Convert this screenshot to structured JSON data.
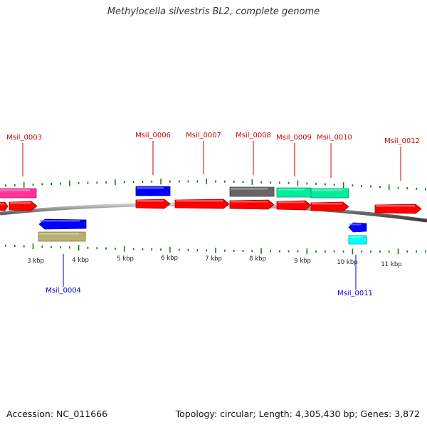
{
  "title": "Methylocella silvestris BL2, complete genome",
  "footer": {
    "accession": "Accession: NC_011666",
    "stats": "Topology: circular; Length: 4,305,430 bp; Genes: 3,872"
  },
  "colors": {
    "backbone": "#7a7a7a",
    "tick": "#1f7a1f",
    "label_forward": "#cc0000",
    "label_reverse": "#0000cc"
  },
  "gene_labels": [
    {
      "id": "Msil_0003",
      "strand": "+"
    },
    {
      "id": "Msil_0004",
      "strand": "-"
    },
    {
      "id": "Msil_0006",
      "strand": "+"
    },
    {
      "id": "Msil_0007",
      "strand": "+"
    },
    {
      "id": "Msil_0008",
      "strand": "+"
    },
    {
      "id": "Msil_0009",
      "strand": "+"
    },
    {
      "id": "Msil_0010",
      "strand": "+"
    },
    {
      "id": "Msil_0011",
      "strand": "-"
    },
    {
      "id": "Msil_0012",
      "strand": "+"
    }
  ],
  "scale_labels": [
    "3 kbp",
    "4 kbp",
    "5 kbp",
    "6 kbp",
    "7 kbp",
    "8 kbp",
    "9 kbp",
    "10 kbp",
    "11 kbp"
  ]
}
